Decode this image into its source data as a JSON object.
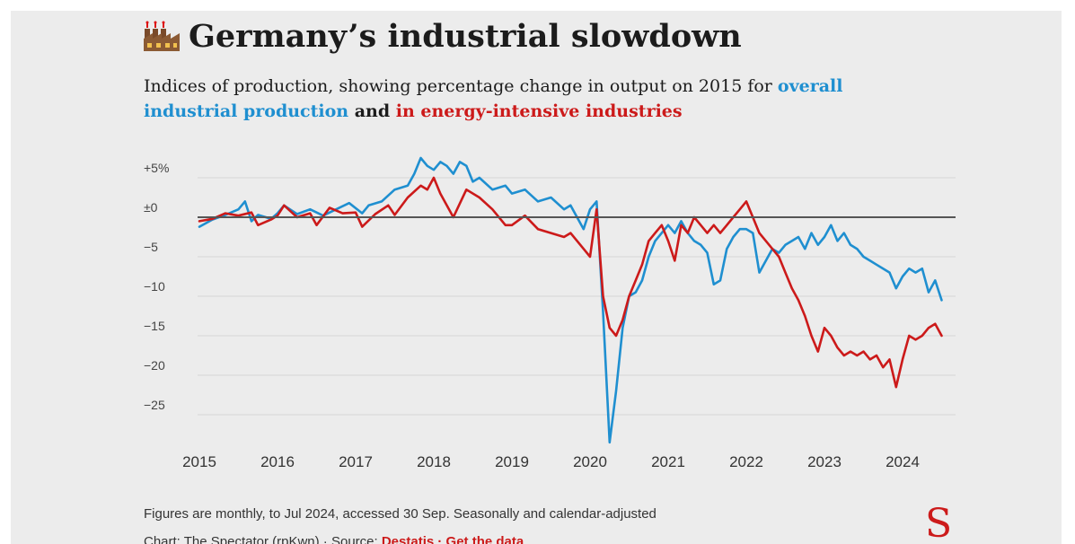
{
  "header": {
    "title": "Germany’s industrial slowdown",
    "title_icon": "factory-icon",
    "subtitle_part1": "Indices of production, showing percentage change in output on 2015 for ",
    "subtitle_blue": "overall industrial production",
    "subtitle_part2": " and ",
    "subtitle_red": "in energy-intensive industries"
  },
  "footer": {
    "note": "Figures are monthly, to Jul 2024, accessed 30 Sep. Seasonally and calendar-adjusted",
    "credit_prefix": "Chart: The Spectator (rpKwn) · Source: ",
    "source_link": "Destatis",
    "separator": " · ",
    "data_link": "Get the data",
    "logo": "S"
  },
  "colors": {
    "overall": "#1f8fd0",
    "energy": "#cc1a1a",
    "zero_line": "#555555",
    "grid": "#d6d6d6"
  },
  "chart_data": {
    "type": "line",
    "title": "Germany’s industrial slowdown",
    "xlabel": "",
    "ylabel": "",
    "x_start": "2015-01",
    "x_end": "2024-07",
    "x_ticks": [
      "2015",
      "2016",
      "2017",
      "2018",
      "2019",
      "2020",
      "2021",
      "2022",
      "2023",
      "2024"
    ],
    "y_ticks": [
      {
        "value": 5,
        "label": "+5%"
      },
      {
        "value": 0,
        "label": "±0"
      },
      {
        "value": -5,
        "label": "−5"
      },
      {
        "value": -10,
        "label": "−10"
      },
      {
        "value": -15,
        "label": "−15"
      },
      {
        "value": -20,
        "label": "−20"
      },
      {
        "value": -25,
        "label": "−25"
      }
    ],
    "ylim": [
      -28,
      8
    ],
    "grid": true,
    "series": [
      {
        "name": "overall industrial production",
        "color": "#1f8fd0",
        "points": [
          [
            "2015-01",
            -1.2
          ],
          [
            "2015-03",
            -0.3
          ],
          [
            "2015-05",
            0.3
          ],
          [
            "2015-07",
            1.0
          ],
          [
            "2015-08",
            2.0
          ],
          [
            "2015-09",
            -0.5
          ],
          [
            "2015-10",
            0.3
          ],
          [
            "2015-12",
            -0.2
          ],
          [
            "2016-01",
            0.5
          ],
          [
            "2016-02",
            1.5
          ],
          [
            "2016-04",
            0.4
          ],
          [
            "2016-06",
            1.0
          ],
          [
            "2016-08",
            0.2
          ],
          [
            "2016-10",
            1.0
          ],
          [
            "2016-12",
            1.8
          ],
          [
            "2017-02",
            0.5
          ],
          [
            "2017-03",
            1.5
          ],
          [
            "2017-05",
            2.0
          ],
          [
            "2017-07",
            3.5
          ],
          [
            "2017-09",
            4.0
          ],
          [
            "2017-10",
            5.5
          ],
          [
            "2017-11",
            7.5
          ],
          [
            "2017-12",
            6.5
          ],
          [
            "2018-01",
            6.0
          ],
          [
            "2018-02",
            7.0
          ],
          [
            "2018-03",
            6.5
          ],
          [
            "2018-04",
            5.5
          ],
          [
            "2018-05",
            7.0
          ],
          [
            "2018-06",
            6.5
          ],
          [
            "2018-07",
            4.5
          ],
          [
            "2018-08",
            5.0
          ],
          [
            "2018-10",
            3.5
          ],
          [
            "2018-12",
            4.0
          ],
          [
            "2019-01",
            3.0
          ],
          [
            "2019-03",
            3.5
          ],
          [
            "2019-05",
            2.0
          ],
          [
            "2019-07",
            2.5
          ],
          [
            "2019-09",
            1.0
          ],
          [
            "2019-10",
            1.5
          ],
          [
            "2019-12",
            -1.5
          ],
          [
            "2020-01",
            1.0
          ],
          [
            "2020-02",
            2.0
          ],
          [
            "2020-03",
            -12.0
          ],
          [
            "2020-04",
            -28.5
          ],
          [
            "2020-05",
            -22.0
          ],
          [
            "2020-06",
            -14.0
          ],
          [
            "2020-07",
            -10.0
          ],
          [
            "2020-08",
            -9.5
          ],
          [
            "2020-09",
            -8.0
          ],
          [
            "2020-10",
            -5.0
          ],
          [
            "2020-11",
            -3.0
          ],
          [
            "2020-12",
            -2.0
          ],
          [
            "2021-01",
            -1.0
          ],
          [
            "2021-02",
            -2.0
          ],
          [
            "2021-03",
            -0.5
          ],
          [
            "2021-04",
            -2.0
          ],
          [
            "2021-05",
            -3.0
          ],
          [
            "2021-06",
            -3.5
          ],
          [
            "2021-07",
            -4.5
          ],
          [
            "2021-08",
            -8.5
          ],
          [
            "2021-09",
            -8.0
          ],
          [
            "2021-10",
            -4.0
          ],
          [
            "2021-11",
            -2.5
          ],
          [
            "2021-12",
            -1.5
          ],
          [
            "2022-01",
            -1.5
          ],
          [
            "2022-02",
            -2.0
          ],
          [
            "2022-03",
            -7.0
          ],
          [
            "2022-04",
            -5.5
          ],
          [
            "2022-05",
            -4.0
          ],
          [
            "2022-06",
            -4.5
          ],
          [
            "2022-07",
            -3.5
          ],
          [
            "2022-08",
            -3.0
          ],
          [
            "2022-09",
            -2.5
          ],
          [
            "2022-10",
            -4.0
          ],
          [
            "2022-11",
            -2.0
          ],
          [
            "2022-12",
            -3.5
          ],
          [
            "2023-01",
            -2.5
          ],
          [
            "2023-02",
            -1.0
          ],
          [
            "2023-03",
            -3.0
          ],
          [
            "2023-04",
            -2.0
          ],
          [
            "2023-05",
            -3.5
          ],
          [
            "2023-06",
            -4.0
          ],
          [
            "2023-07",
            -5.0
          ],
          [
            "2023-08",
            -5.5
          ],
          [
            "2023-09",
            -6.0
          ],
          [
            "2023-10",
            -6.5
          ],
          [
            "2023-11",
            -7.0
          ],
          [
            "2023-12",
            -9.0
          ],
          [
            "2024-01",
            -7.5
          ],
          [
            "2024-02",
            -6.5
          ],
          [
            "2024-03",
            -7.0
          ],
          [
            "2024-04",
            -6.5
          ],
          [
            "2024-05",
            -9.5
          ],
          [
            "2024-06",
            -8.0
          ],
          [
            "2024-07",
            -10.5
          ]
        ]
      },
      {
        "name": "in energy-intensive industries",
        "color": "#cc1a1a",
        "points": [
          [
            "2015-01",
            -0.5
          ],
          [
            "2015-03",
            -0.2
          ],
          [
            "2015-05",
            0.5
          ],
          [
            "2015-07",
            0.2
          ],
          [
            "2015-09",
            0.6
          ],
          [
            "2015-10",
            -1.0
          ],
          [
            "2015-12",
            -0.3
          ],
          [
            "2016-01",
            0.2
          ],
          [
            "2016-02",
            1.5
          ],
          [
            "2016-04",
            0.0
          ],
          [
            "2016-06",
            0.5
          ],
          [
            "2016-07",
            -1.0
          ],
          [
            "2016-09",
            1.2
          ],
          [
            "2016-11",
            0.5
          ],
          [
            "2017-01",
            0.6
          ],
          [
            "2017-02",
            -1.2
          ],
          [
            "2017-04",
            0.4
          ],
          [
            "2017-06",
            1.5
          ],
          [
            "2017-07",
            0.3
          ],
          [
            "2017-09",
            2.5
          ],
          [
            "2017-11",
            4.0
          ],
          [
            "2017-12",
            3.5
          ],
          [
            "2018-01",
            5.0
          ],
          [
            "2018-02",
            3.0
          ],
          [
            "2018-04",
            0.0
          ],
          [
            "2018-06",
            3.5
          ],
          [
            "2018-08",
            2.5
          ],
          [
            "2018-10",
            1.0
          ],
          [
            "2018-12",
            -1.0
          ],
          [
            "2019-01",
            -1.0
          ],
          [
            "2019-03",
            0.2
          ],
          [
            "2019-05",
            -1.5
          ],
          [
            "2019-07",
            -2.0
          ],
          [
            "2019-09",
            -2.5
          ],
          [
            "2019-10",
            -2.0
          ],
          [
            "2019-12",
            -4.0
          ],
          [
            "2020-01",
            -5.0
          ],
          [
            "2020-02",
            1.0
          ],
          [
            "2020-03",
            -10.0
          ],
          [
            "2020-04",
            -14.0
          ],
          [
            "2020-05",
            -15.0
          ],
          [
            "2020-06",
            -13.0
          ],
          [
            "2020-07",
            -10.0
          ],
          [
            "2020-08",
            -8.0
          ],
          [
            "2020-09",
            -6.0
          ],
          [
            "2020-10",
            -3.0
          ],
          [
            "2020-11",
            -2.0
          ],
          [
            "2020-12",
            -1.0
          ],
          [
            "2021-01",
            -3.0
          ],
          [
            "2021-02",
            -5.5
          ],
          [
            "2021-03",
            -1.0
          ],
          [
            "2021-04",
            -2.0
          ],
          [
            "2021-05",
            0.0
          ],
          [
            "2021-06",
            -1.0
          ],
          [
            "2021-07",
            -2.0
          ],
          [
            "2021-08",
            -1.0
          ],
          [
            "2021-09",
            -2.0
          ],
          [
            "2021-10",
            -1.0
          ],
          [
            "2021-11",
            0.0
          ],
          [
            "2021-12",
            1.0
          ],
          [
            "2022-01",
            2.0
          ],
          [
            "2022-02",
            0.0
          ],
          [
            "2022-03",
            -2.0
          ],
          [
            "2022-04",
            -3.0
          ],
          [
            "2022-05",
            -4.0
          ],
          [
            "2022-06",
            -5.0
          ],
          [
            "2022-07",
            -7.0
          ],
          [
            "2022-08",
            -9.0
          ],
          [
            "2022-09",
            -10.5
          ],
          [
            "2022-10",
            -12.5
          ],
          [
            "2022-11",
            -15.0
          ],
          [
            "2022-12",
            -17.0
          ],
          [
            "2023-01",
            -14.0
          ],
          [
            "2023-02",
            -15.0
          ],
          [
            "2023-03",
            -16.5
          ],
          [
            "2023-04",
            -17.5
          ],
          [
            "2023-05",
            -17.0
          ],
          [
            "2023-06",
            -17.5
          ],
          [
            "2023-07",
            -17.0
          ],
          [
            "2023-08",
            -18.0
          ],
          [
            "2023-09",
            -17.5
          ],
          [
            "2023-10",
            -19.0
          ],
          [
            "2023-11",
            -18.0
          ],
          [
            "2023-12",
            -21.5
          ],
          [
            "2024-01",
            -18.0
          ],
          [
            "2024-02",
            -15.0
          ],
          [
            "2024-03",
            -15.5
          ],
          [
            "2024-04",
            -15.0
          ],
          [
            "2024-05",
            -14.0
          ],
          [
            "2024-06",
            -13.5
          ],
          [
            "2024-07",
            -15.0
          ]
        ]
      }
    ]
  }
}
